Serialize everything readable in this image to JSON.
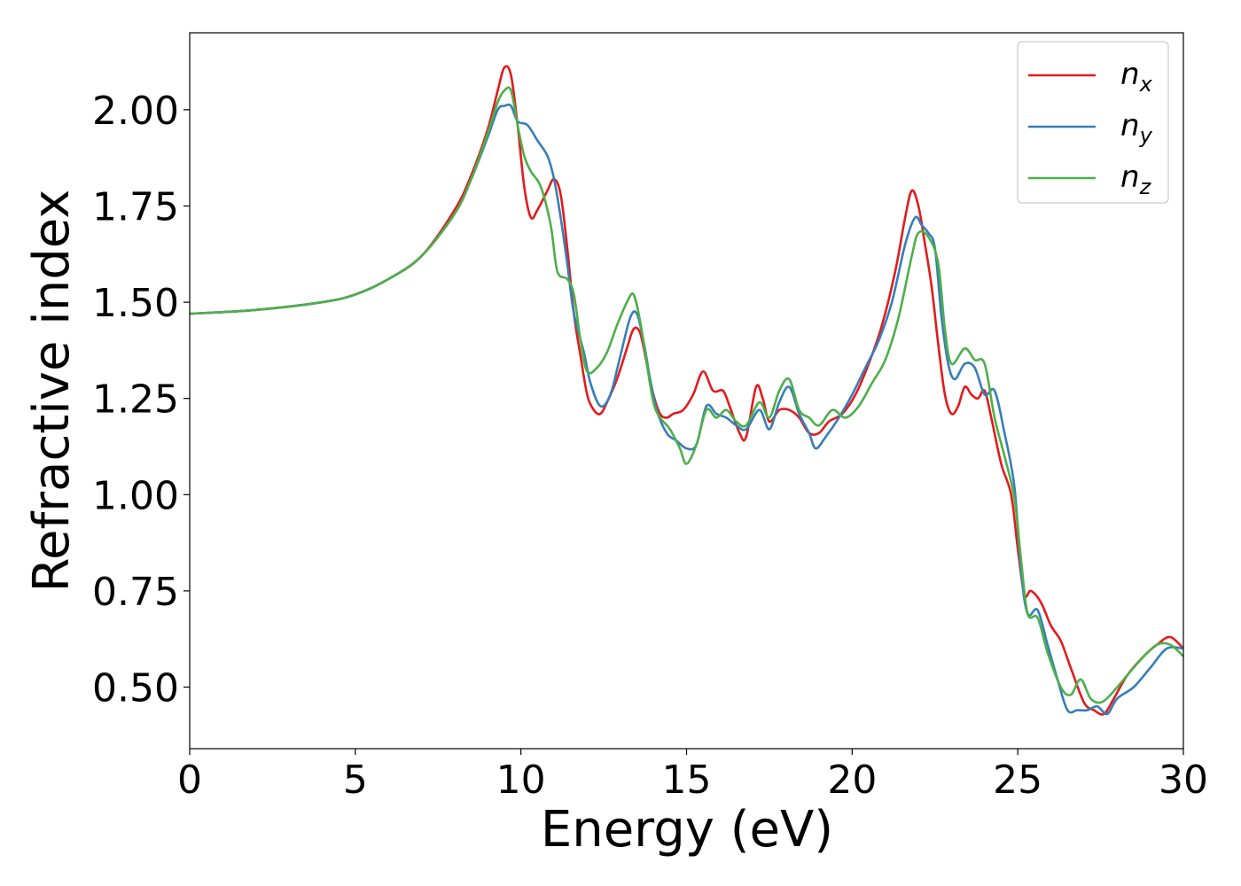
{
  "chart_data": {
    "type": "line",
    "title": "",
    "xlabel": "Energy (eV)",
    "ylabel": "Refractive index",
    "xlim": [
      0,
      30
    ],
    "ylim": [
      0.34,
      2.2
    ],
    "xticks": [
      0,
      5,
      10,
      15,
      20,
      25,
      30
    ],
    "xtick_labels": [
      "0",
      "5",
      "10",
      "15",
      "20",
      "25",
      "30"
    ],
    "yticks": [
      0.5,
      0.75,
      1.0,
      1.25,
      1.5,
      1.75,
      2.0
    ],
    "ytick_labels": [
      "0.50",
      "0.75",
      "1.00",
      "1.25",
      "1.50",
      "1.75",
      "2.00"
    ],
    "grid": false,
    "legend_position": "top-right",
    "series": [
      {
        "name": "n",
        "subscript": "x",
        "color": "#e41a1c",
        "points": [
          [
            0,
            1.47
          ],
          [
            2,
            1.48
          ],
          [
            4,
            1.5
          ],
          [
            5,
            1.52
          ],
          [
            6,
            1.56
          ],
          [
            7,
            1.62
          ],
          [
            8,
            1.74
          ],
          [
            8.5,
            1.83
          ],
          [
            9,
            1.95
          ],
          [
            9.3,
            2.05
          ],
          [
            9.5,
            2.11
          ],
          [
            9.7,
            2.09
          ],
          [
            9.9,
            1.96
          ],
          [
            10.1,
            1.8
          ],
          [
            10.3,
            1.72
          ],
          [
            10.5,
            1.74
          ],
          [
            10.8,
            1.79
          ],
          [
            11.0,
            1.82
          ],
          [
            11.2,
            1.78
          ],
          [
            11.4,
            1.64
          ],
          [
            11.6,
            1.47
          ],
          [
            11.8,
            1.36
          ],
          [
            12.0,
            1.26
          ],
          [
            12.2,
            1.22
          ],
          [
            12.4,
            1.21
          ],
          [
            12.6,
            1.24
          ],
          [
            12.9,
            1.3
          ],
          [
            13.2,
            1.38
          ],
          [
            13.4,
            1.43
          ],
          [
            13.6,
            1.42
          ],
          [
            13.8,
            1.34
          ],
          [
            14.0,
            1.26
          ],
          [
            14.2,
            1.21
          ],
          [
            14.4,
            1.2
          ],
          [
            14.6,
            1.21
          ],
          [
            14.9,
            1.22
          ],
          [
            15.2,
            1.26
          ],
          [
            15.5,
            1.32
          ],
          [
            15.8,
            1.27
          ],
          [
            16.1,
            1.27
          ],
          [
            16.3,
            1.23
          ],
          [
            16.6,
            1.16
          ],
          [
            16.8,
            1.15
          ],
          [
            17.1,
            1.28
          ],
          [
            17.3,
            1.25
          ],
          [
            17.5,
            1.19
          ],
          [
            17.8,
            1.22
          ],
          [
            18.1,
            1.22
          ],
          [
            18.4,
            1.2
          ],
          [
            18.7,
            1.16
          ],
          [
            19.0,
            1.16
          ],
          [
            19.3,
            1.19
          ],
          [
            19.7,
            1.21
          ],
          [
            20.1,
            1.26
          ],
          [
            20.5,
            1.34
          ],
          [
            20.9,
            1.44
          ],
          [
            21.3,
            1.58
          ],
          [
            21.6,
            1.72
          ],
          [
            21.8,
            1.79
          ],
          [
            22.0,
            1.75
          ],
          [
            22.2,
            1.65
          ],
          [
            22.4,
            1.54
          ],
          [
            22.6,
            1.39
          ],
          [
            22.8,
            1.26
          ],
          [
            23.0,
            1.21
          ],
          [
            23.2,
            1.23
          ],
          [
            23.4,
            1.28
          ],
          [
            23.6,
            1.26
          ],
          [
            23.8,
            1.25
          ],
          [
            24.0,
            1.27
          ],
          [
            24.2,
            1.2
          ],
          [
            24.5,
            1.08
          ],
          [
            24.8,
            1.0
          ],
          [
            25.0,
            0.86
          ],
          [
            25.2,
            0.74
          ],
          [
            25.4,
            0.75
          ],
          [
            25.7,
            0.72
          ],
          [
            26.0,
            0.66
          ],
          [
            26.3,
            0.62
          ],
          [
            26.6,
            0.55
          ],
          [
            27.0,
            0.46
          ],
          [
            27.3,
            0.44
          ],
          [
            27.6,
            0.43
          ],
          [
            27.9,
            0.47
          ],
          [
            28.3,
            0.53
          ],
          [
            28.8,
            0.58
          ],
          [
            29.2,
            0.61
          ],
          [
            29.6,
            0.63
          ],
          [
            30.0,
            0.6
          ]
        ]
      },
      {
        "name": "n",
        "subscript": "y",
        "color": "#377eb8",
        "points": [
          [
            0,
            1.47
          ],
          [
            2,
            1.48
          ],
          [
            4,
            1.5
          ],
          [
            5,
            1.52
          ],
          [
            6,
            1.56
          ],
          [
            7,
            1.62
          ],
          [
            8,
            1.73
          ],
          [
            8.5,
            1.82
          ],
          [
            9,
            1.93
          ],
          [
            9.3,
            2.0
          ],
          [
            9.5,
            2.01
          ],
          [
            9.7,
            2.01
          ],
          [
            9.9,
            1.97
          ],
          [
            10.2,
            1.96
          ],
          [
            10.5,
            1.92
          ],
          [
            10.8,
            1.88
          ],
          [
            11.0,
            1.82
          ],
          [
            11.2,
            1.72
          ],
          [
            11.4,
            1.6
          ],
          [
            11.6,
            1.47
          ],
          [
            11.9,
            1.37
          ],
          [
            12.1,
            1.29
          ],
          [
            12.4,
            1.23
          ],
          [
            12.7,
            1.26
          ],
          [
            13.0,
            1.36
          ],
          [
            13.3,
            1.46
          ],
          [
            13.5,
            1.47
          ],
          [
            13.7,
            1.4
          ],
          [
            13.9,
            1.3
          ],
          [
            14.1,
            1.22
          ],
          [
            14.4,
            1.16
          ],
          [
            14.7,
            1.14
          ],
          [
            15.0,
            1.12
          ],
          [
            15.3,
            1.13
          ],
          [
            15.6,
            1.23
          ],
          [
            15.9,
            1.21
          ],
          [
            16.2,
            1.2
          ],
          [
            16.5,
            1.18
          ],
          [
            16.8,
            1.17
          ],
          [
            17.2,
            1.22
          ],
          [
            17.5,
            1.17
          ],
          [
            17.8,
            1.24
          ],
          [
            18.1,
            1.28
          ],
          [
            18.4,
            1.21
          ],
          [
            18.7,
            1.16
          ],
          [
            18.9,
            1.12
          ],
          [
            19.2,
            1.15
          ],
          [
            19.6,
            1.2
          ],
          [
            20.0,
            1.26
          ],
          [
            20.4,
            1.33
          ],
          [
            20.8,
            1.4
          ],
          [
            21.2,
            1.5
          ],
          [
            21.6,
            1.65
          ],
          [
            21.9,
            1.72
          ],
          [
            22.1,
            1.7
          ],
          [
            22.3,
            1.68
          ],
          [
            22.5,
            1.64
          ],
          [
            22.7,
            1.46
          ],
          [
            22.9,
            1.34
          ],
          [
            23.1,
            1.3
          ],
          [
            23.4,
            1.34
          ],
          [
            23.7,
            1.33
          ],
          [
            24.0,
            1.26
          ],
          [
            24.3,
            1.27
          ],
          [
            24.6,
            1.16
          ],
          [
            24.9,
            1.02
          ],
          [
            25.1,
            0.8
          ],
          [
            25.3,
            0.69
          ],
          [
            25.6,
            0.7
          ],
          [
            25.9,
            0.61
          ],
          [
            26.2,
            0.52
          ],
          [
            26.5,
            0.44
          ],
          [
            26.8,
            0.44
          ],
          [
            27.1,
            0.44
          ],
          [
            27.4,
            0.45
          ],
          [
            27.7,
            0.43
          ],
          [
            28.0,
            0.47
          ],
          [
            28.5,
            0.5
          ],
          [
            29.0,
            0.55
          ],
          [
            29.5,
            0.6
          ],
          [
            30.0,
            0.6
          ]
        ]
      },
      {
        "name": "n",
        "subscript": "z",
        "color": "#4daf4a",
        "points": [
          [
            0,
            1.47
          ],
          [
            2,
            1.48
          ],
          [
            4,
            1.5
          ],
          [
            5,
            1.52
          ],
          [
            6,
            1.56
          ],
          [
            7,
            1.62
          ],
          [
            8,
            1.73
          ],
          [
            8.5,
            1.82
          ],
          [
            9,
            1.94
          ],
          [
            9.3,
            2.02
          ],
          [
            9.5,
            2.05
          ],
          [
            9.7,
            2.05
          ],
          [
            9.9,
            1.96
          ],
          [
            10.1,
            1.88
          ],
          [
            10.3,
            1.84
          ],
          [
            10.6,
            1.8
          ],
          [
            10.9,
            1.7
          ],
          [
            11.1,
            1.58
          ],
          [
            11.4,
            1.56
          ],
          [
            11.6,
            1.52
          ],
          [
            11.8,
            1.4
          ],
          [
            12.0,
            1.32
          ],
          [
            12.3,
            1.33
          ],
          [
            12.6,
            1.37
          ],
          [
            12.9,
            1.44
          ],
          [
            13.2,
            1.5
          ],
          [
            13.4,
            1.52
          ],
          [
            13.6,
            1.45
          ],
          [
            13.8,
            1.34
          ],
          [
            14.0,
            1.24
          ],
          [
            14.2,
            1.2
          ],
          [
            14.5,
            1.17
          ],
          [
            14.8,
            1.12
          ],
          [
            15.0,
            1.08
          ],
          [
            15.3,
            1.13
          ],
          [
            15.6,
            1.22
          ],
          [
            15.9,
            1.2
          ],
          [
            16.2,
            1.22
          ],
          [
            16.5,
            1.19
          ],
          [
            16.8,
            1.18
          ],
          [
            17.2,
            1.24
          ],
          [
            17.5,
            1.2
          ],
          [
            17.8,
            1.27
          ],
          [
            18.1,
            1.3
          ],
          [
            18.4,
            1.22
          ],
          [
            18.7,
            1.2
          ],
          [
            19.0,
            1.18
          ],
          [
            19.4,
            1.22
          ],
          [
            19.8,
            1.2
          ],
          [
            20.2,
            1.23
          ],
          [
            20.6,
            1.29
          ],
          [
            21.0,
            1.35
          ],
          [
            21.4,
            1.46
          ],
          [
            21.8,
            1.62
          ],
          [
            22.0,
            1.68
          ],
          [
            22.3,
            1.67
          ],
          [
            22.6,
            1.6
          ],
          [
            22.8,
            1.43
          ],
          [
            23.0,
            1.34
          ],
          [
            23.4,
            1.38
          ],
          [
            23.7,
            1.35
          ],
          [
            24.0,
            1.34
          ],
          [
            24.3,
            1.2
          ],
          [
            24.6,
            1.1
          ],
          [
            24.9,
            0.99
          ],
          [
            25.1,
            0.83
          ],
          [
            25.3,
            0.69
          ],
          [
            25.6,
            0.68
          ],
          [
            25.9,
            0.59
          ],
          [
            26.3,
            0.5
          ],
          [
            26.6,
            0.48
          ],
          [
            26.9,
            0.52
          ],
          [
            27.2,
            0.47
          ],
          [
            27.5,
            0.46
          ],
          [
            27.8,
            0.48
          ],
          [
            28.2,
            0.52
          ],
          [
            28.7,
            0.57
          ],
          [
            29.2,
            0.61
          ],
          [
            29.6,
            0.61
          ],
          [
            30.0,
            0.58
          ]
        ]
      }
    ]
  }
}
